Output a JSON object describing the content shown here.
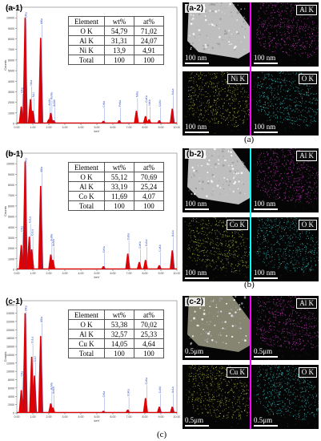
{
  "figure": {
    "panels": [
      {
        "id": "a",
        "spectrum_label": "(a-1)",
        "map_label": "(a-2)",
        "caption": "(a)",
        "table": {
          "headers": [
            "Element",
            "wt%",
            "at%"
          ],
          "rows": [
            [
              "O K",
              "54,79",
              "71,02"
            ],
            [
              "Al K",
              "31,31",
              "24,07"
            ],
            [
              "Ni K",
              "13,9",
              "4,91"
            ],
            [
              "Total",
              "100",
              "100"
            ]
          ]
        },
        "maps": [
          {
            "label": "",
            "tone": "#c8c8c8",
            "scale": "100 nm"
          },
          {
            "label": "Al K",
            "tone": "#d23cc8",
            "scale": "100 nm"
          },
          {
            "label": "Ni K",
            "tone": "#c8c83c",
            "scale": "100 nm"
          },
          {
            "label": "O K",
            "tone": "#3cc8c8",
            "scale": "100 nm"
          }
        ],
        "divider_color": "#ff00ff"
      },
      {
        "id": "b",
        "spectrum_label": "(b-1)",
        "map_label": "(b-2)",
        "caption": "(b)",
        "table": {
          "headers": [
            "Element",
            "wt%",
            "at%"
          ],
          "rows": [
            [
              "O K",
              "55,12",
              "70,69"
            ],
            [
              "Al K",
              "33,19",
              "25,24"
            ],
            [
              "Co K",
              "11,69",
              "4,07"
            ],
            [
              "Total",
              "100",
              "100"
            ]
          ]
        },
        "maps": [
          {
            "label": "",
            "tone": "#c8c8c8",
            "scale": "100 nm"
          },
          {
            "label": "Al K",
            "tone": "#d23cc8",
            "scale": "100 nm"
          },
          {
            "label": "Co K",
            "tone": "#b4c83c",
            "scale": "100 nm"
          },
          {
            "label": "O K",
            "tone": "#3cc8c8",
            "scale": "100 nm"
          }
        ],
        "divider_color": "#00ffff"
      },
      {
        "id": "c",
        "spectrum_label": "(c-1)",
        "map_label": "(c-2)",
        "caption": "(c)",
        "table": {
          "headers": [
            "Element",
            "wt%",
            "at%"
          ],
          "rows": [
            [
              "O K",
              "53,38",
              "70,02"
            ],
            [
              "Al K",
              "32,57",
              "25,33"
            ],
            [
              "Cu K",
              "14,05",
              "4,64"
            ],
            [
              "Total",
              "100",
              "100"
            ]
          ]
        },
        "maps": [
          {
            "label": "",
            "tone": "#8c8c78",
            "scale": "0.5μm"
          },
          {
            "label": "Al K",
            "tone": "#d23cc8",
            "scale": "0.5μm"
          },
          {
            "label": "Cu K",
            "tone": "#c8c83c",
            "scale": "0.5μm"
          },
          {
            "label": "O K",
            "tone": "#3cc8c8",
            "scale": "0.5μm"
          }
        ],
        "divider_color": "#ff00ff"
      }
    ]
  },
  "chart_data": [
    {
      "type": "bar",
      "ylabel": "Counts",
      "xlabel": "keV",
      "x_ticks": [
        "0.00",
        "1.00",
        "2.00",
        "3.00",
        "4.00",
        "5.00",
        "6.00",
        "7.00",
        "8.00",
        "9.00",
        "10.00"
      ],
      "y_ticks": [
        "0",
        "1000",
        "2000",
        "3000",
        "4000",
        "5000",
        "6000",
        "7000",
        "8000",
        "9000",
        "10000",
        "11000"
      ],
      "xlim": [
        0,
        10
      ],
      "ylim": [
        0,
        11000
      ],
      "peaks": [
        {
          "x": 0.28,
          "y": 1600,
          "label": "CKa"
        },
        {
          "x": 0.52,
          "y": 10000,
          "label": "OKa"
        },
        {
          "x": 0.85,
          "y": 2300,
          "label": "NiLa"
        },
        {
          "x": 1.0,
          "y": 1200,
          "label": "NiLl"
        },
        {
          "x": 1.49,
          "y": 8100,
          "label": "AlKa"
        },
        {
          "x": 2.0,
          "y": 400,
          "label": "AuMz"
        },
        {
          "x": 2.12,
          "y": 1000,
          "label": "AuMa"
        },
        {
          "x": 2.3,
          "y": 300,
          "label": "AuMb"
        },
        {
          "x": 5.41,
          "y": 250,
          "label": "CrKa"
        },
        {
          "x": 6.4,
          "y": 300,
          "label": "FeKa"
        },
        {
          "x": 7.47,
          "y": 1200,
          "label": "NiKa"
        },
        {
          "x": 8.04,
          "y": 700,
          "label": "CuKa"
        },
        {
          "x": 8.26,
          "y": 400,
          "label": "NiKb"
        },
        {
          "x": 8.9,
          "y": 300,
          "label": "CuKb"
        },
        {
          "x": 9.71,
          "y": 1400,
          "label": "AuLa"
        }
      ]
    },
    {
      "type": "bar",
      "ylabel": "Counts",
      "xlabel": "keV",
      "x_ticks": [
        "0.00",
        "1.00",
        "2.00",
        "3.00",
        "4.00",
        "5.00",
        "6.00",
        "7.00",
        "8.00",
        "9.00",
        "10.00"
      ],
      "y_ticks": [
        "0",
        "1000",
        "2000",
        "3000",
        "4000",
        "5000",
        "6000",
        "7000",
        "8000",
        "9000",
        "10000",
        "11000"
      ],
      "xlim": [
        0,
        10
      ],
      "ylim": [
        0,
        11000
      ],
      "peaks": [
        {
          "x": 0.28,
          "y": 2300,
          "label": "CKa"
        },
        {
          "x": 0.52,
          "y": 10200,
          "label": "OKa"
        },
        {
          "x": 0.78,
          "y": 3100,
          "label": "CoLa"
        },
        {
          "x": 0.93,
          "y": 1900,
          "label": "CuLa"
        },
        {
          "x": 1.49,
          "y": 7900,
          "label": "AlKa"
        },
        {
          "x": 2.12,
          "y": 1400,
          "label": "AuMa"
        },
        {
          "x": 2.25,
          "y": 900,
          "label": "AuMb"
        },
        {
          "x": 5.41,
          "y": 300,
          "label": "CrKa"
        },
        {
          "x": 6.93,
          "y": 1500,
          "label": "CoKa"
        },
        {
          "x": 7.65,
          "y": 700,
          "label": "CoKb"
        },
        {
          "x": 8.04,
          "y": 900,
          "label": "CuKa"
        },
        {
          "x": 8.9,
          "y": 400,
          "label": "CuKb"
        },
        {
          "x": 9.71,
          "y": 1800,
          "label": "AuLa"
        }
      ]
    },
    {
      "type": "bar",
      "ylabel": "Counts",
      "xlabel": "keV",
      "x_ticks": [
        "0.00",
        "1.00",
        "2.00",
        "3.00",
        "4.00",
        "5.00",
        "6.00",
        "7.00",
        "8.00",
        "9.00",
        "10.00"
      ],
      "y_ticks": [
        "0",
        "2000",
        "4000",
        "6000",
        "8000",
        "10000",
        "12000",
        "14000",
        "16000",
        "18000",
        "20000",
        "22000",
        "24000",
        "26000"
      ],
      "xlim": [
        0,
        10
      ],
      "ylim": [
        0,
        27000
      ],
      "peaks": [
        {
          "x": 0.28,
          "y": 5500,
          "label": "CKa"
        },
        {
          "x": 0.52,
          "y": 24000,
          "label": "OKa"
        },
        {
          "x": 0.93,
          "y": 13500,
          "label": "CuLa"
        },
        {
          "x": 1.1,
          "y": 9000,
          "label": "CuLl"
        },
        {
          "x": 1.49,
          "y": 18500,
          "label": "AlKa"
        },
        {
          "x": 2.12,
          "y": 2300,
          "label": "AuMa"
        },
        {
          "x": 2.25,
          "y": 1300,
          "label": "AuMb"
        },
        {
          "x": 5.41,
          "y": 500,
          "label": "CrKa"
        },
        {
          "x": 6.93,
          "y": 800,
          "label": "CoKa"
        },
        {
          "x": 8.04,
          "y": 3600,
          "label": "CuKa"
        },
        {
          "x": 8.9,
          "y": 1500,
          "label": "CuKb"
        },
        {
          "x": 9.71,
          "y": 1500,
          "label": "AuLa"
        }
      ]
    }
  ]
}
